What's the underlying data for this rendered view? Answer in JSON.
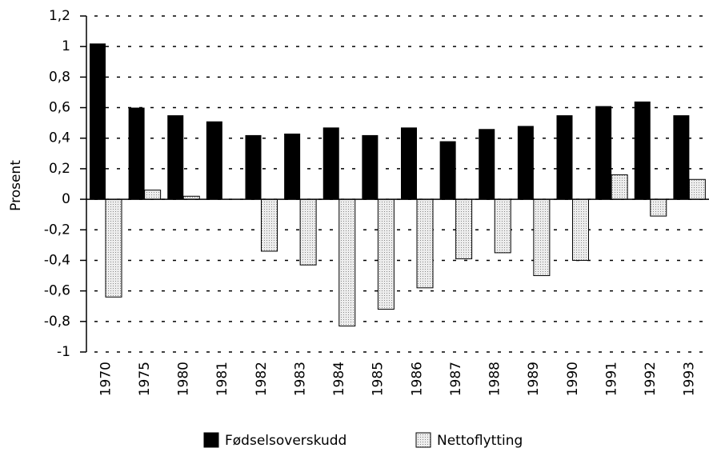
{
  "chart_data": {
    "type": "bar",
    "ylabel": "Prosent",
    "categories": [
      "1970",
      "1975",
      "1980",
      "1981",
      "1982",
      "1983",
      "1984",
      "1985",
      "1986",
      "1987",
      "1988",
      "1989",
      "1990",
      "1991",
      "1992",
      "1993"
    ],
    "series": [
      {
        "name": "Fødselsoverskudd",
        "color": "#000000",
        "values": [
          1.02,
          0.6,
          0.55,
          0.51,
          0.42,
          0.43,
          0.47,
          0.42,
          0.47,
          0.38,
          0.46,
          0.48,
          0.55,
          0.61,
          0.64,
          0.55
        ]
      },
      {
        "name": "Nettoflytting",
        "color": "#e2e2e2",
        "values": [
          -0.64,
          0.06,
          0.02,
          0,
          -0.34,
          -0.43,
          -0.83,
          -0.72,
          -0.58,
          -0.39,
          -0.35,
          -0.5,
          -0.4,
          0.16,
          -0.11,
          0.13
        ]
      }
    ],
    "ylim": [
      -1,
      1.2
    ],
    "yticks": [
      {
        "value": 1.2,
        "label": "1,2"
      },
      1,
      {
        "value": 0.8,
        "label": "0,8"
      },
      {
        "value": 0.6,
        "label": "0,6"
      },
      {
        "value": 0.4,
        "label": "0,4"
      },
      {
        "value": 0.2,
        "label": "0,2"
      },
      0,
      {
        "value": -0.2,
        "label": "-0,2"
      },
      {
        "value": -0.4,
        "label": "-0,4"
      },
      {
        "value": -0.6,
        "label": "-0,6"
      },
      {
        "value": -0.8,
        "label": "-0,8"
      },
      -1
    ],
    "grid": true,
    "legend": "bottom"
  }
}
